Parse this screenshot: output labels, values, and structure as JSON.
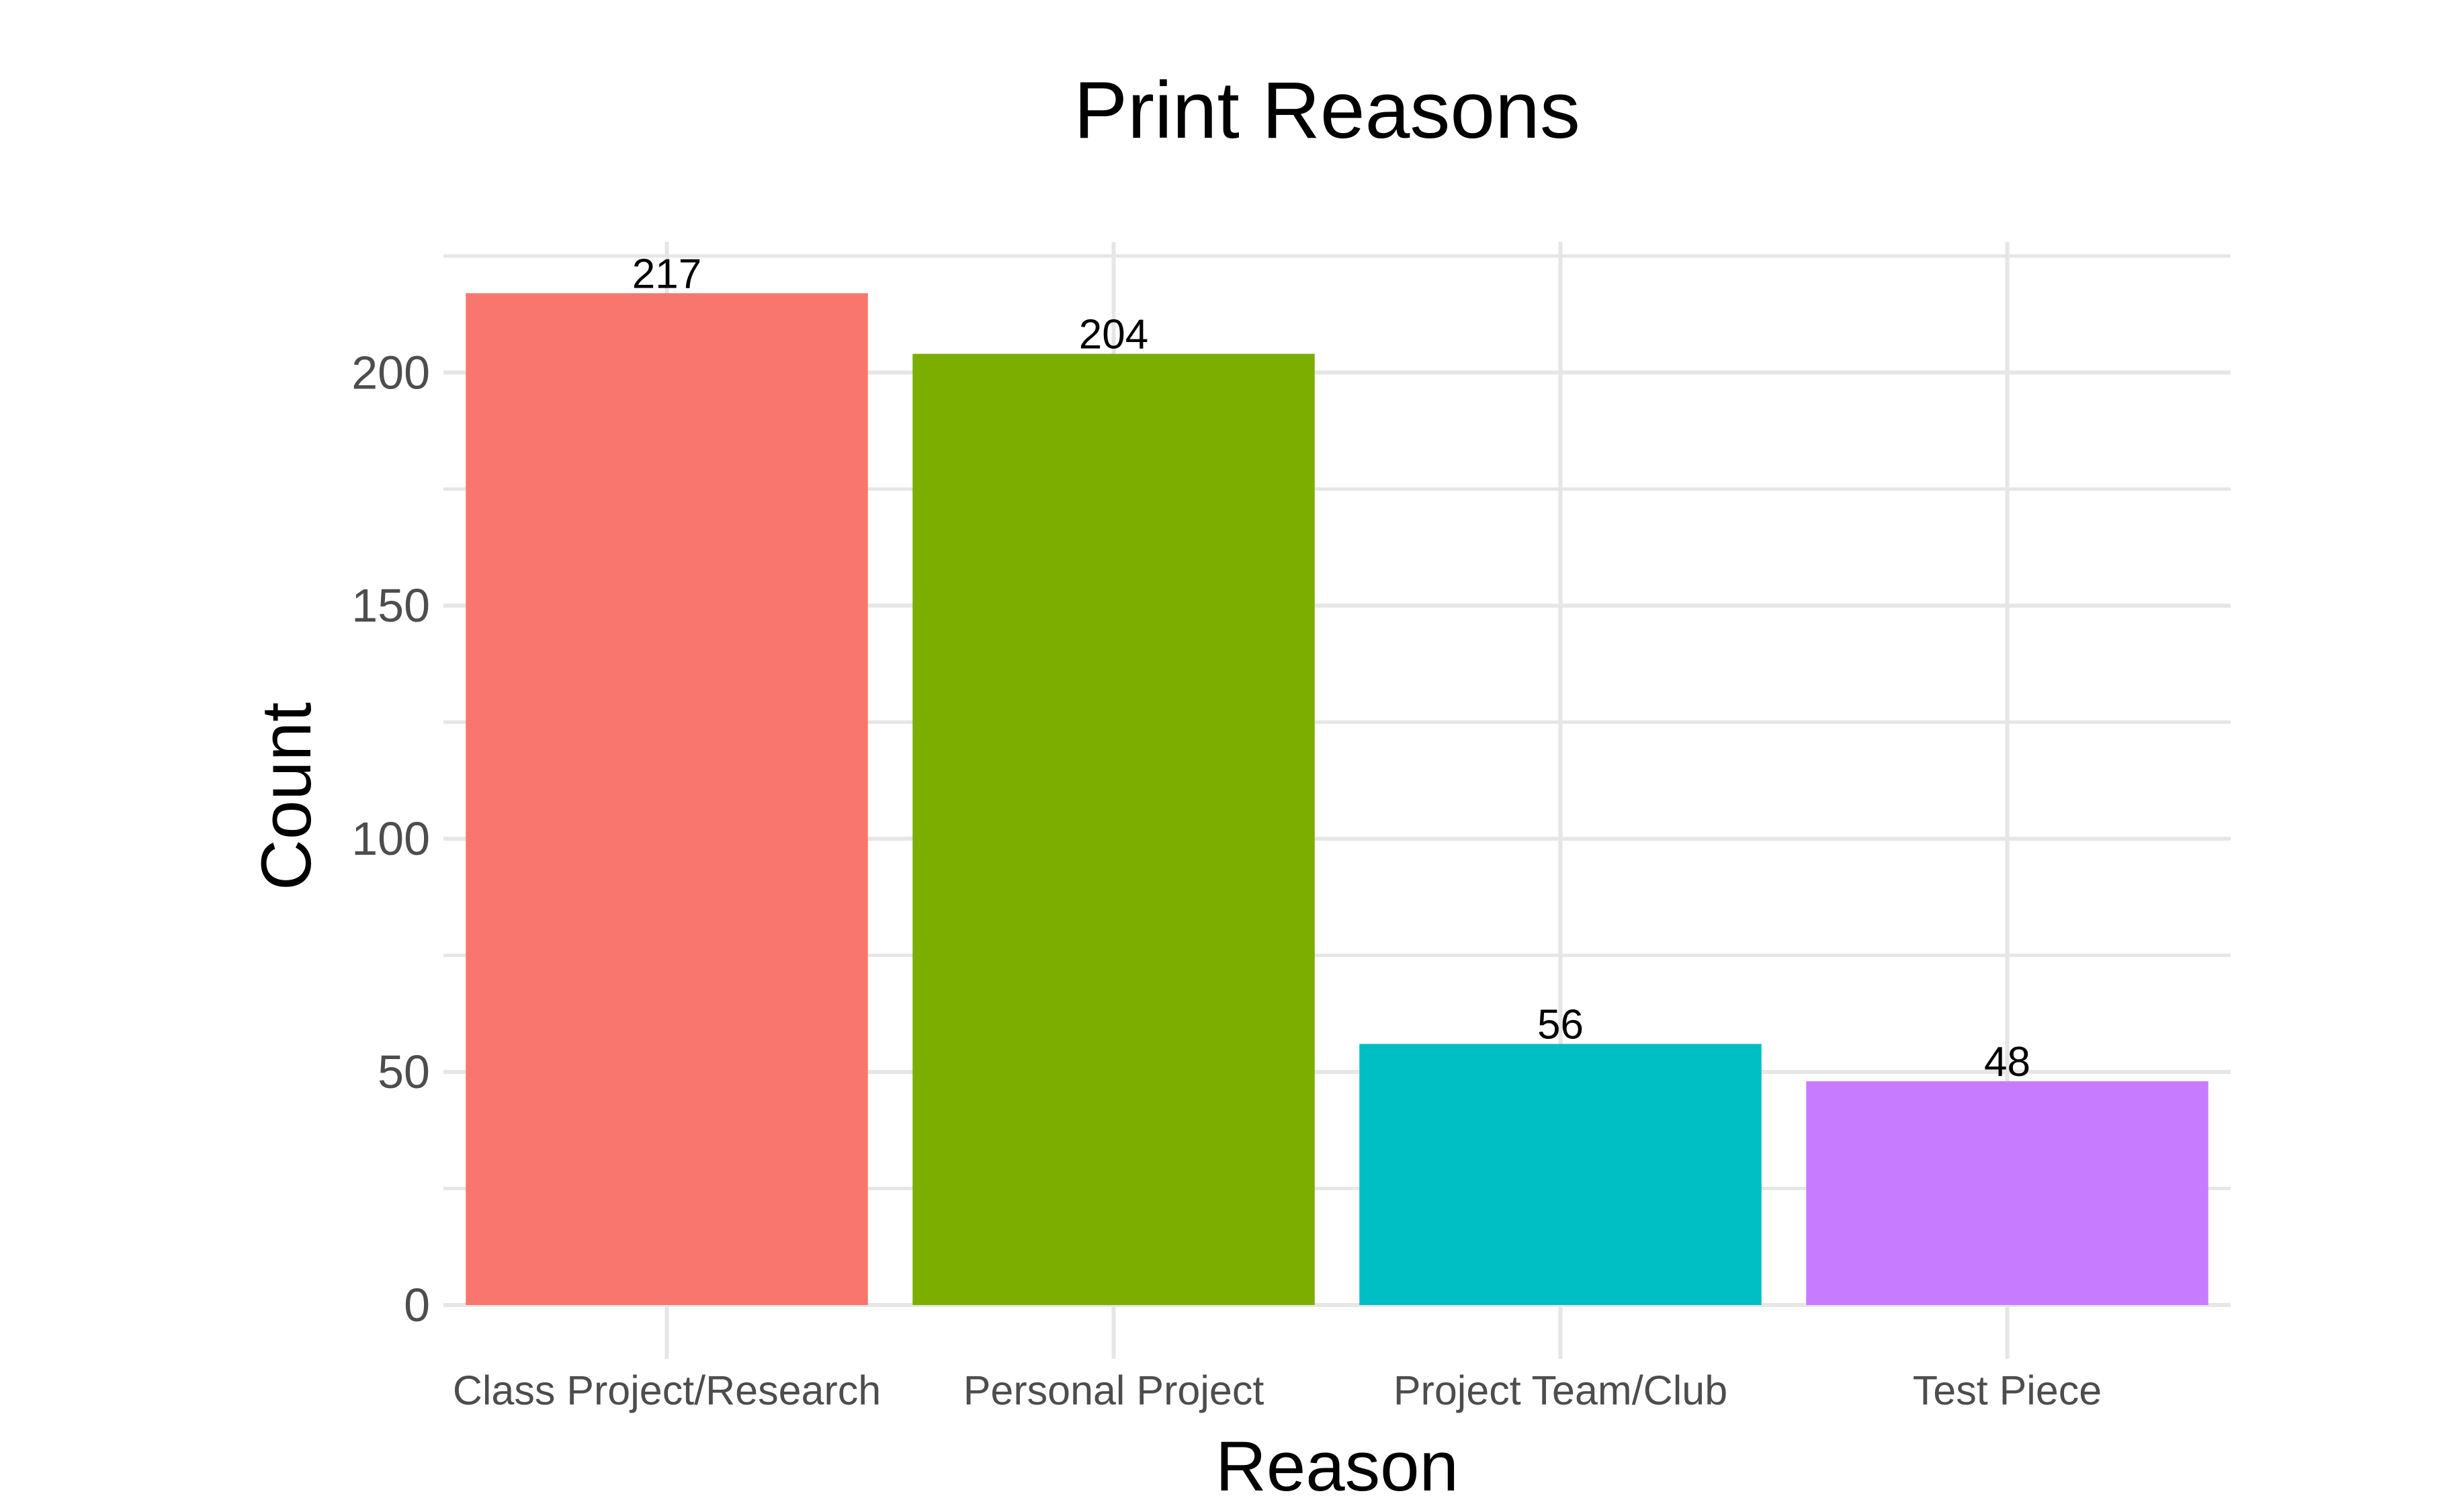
{
  "chart_data": {
    "type": "bar",
    "title": "Print Reasons",
    "xlabel": "Reason",
    "ylabel": "Count",
    "categories": [
      "Class Project/Research",
      "Personal Project",
      "Project Team/Club",
      "Test Piece"
    ],
    "values": [
      217,
      204,
      56,
      48
    ],
    "value_labels": [
      "217",
      "204",
      "56",
      "48"
    ],
    "colors": [
      "#F8766D",
      "#7CAE00",
      "#00BFC4",
      "#C77CFF"
    ],
    "ylim": [
      0,
      228
    ],
    "yticks": [
      0,
      50,
      100,
      150,
      200
    ],
    "ytick_labels": [
      "0",
      "50",
      "100",
      "150",
      "200"
    ],
    "grid": true,
    "legend": "none"
  }
}
